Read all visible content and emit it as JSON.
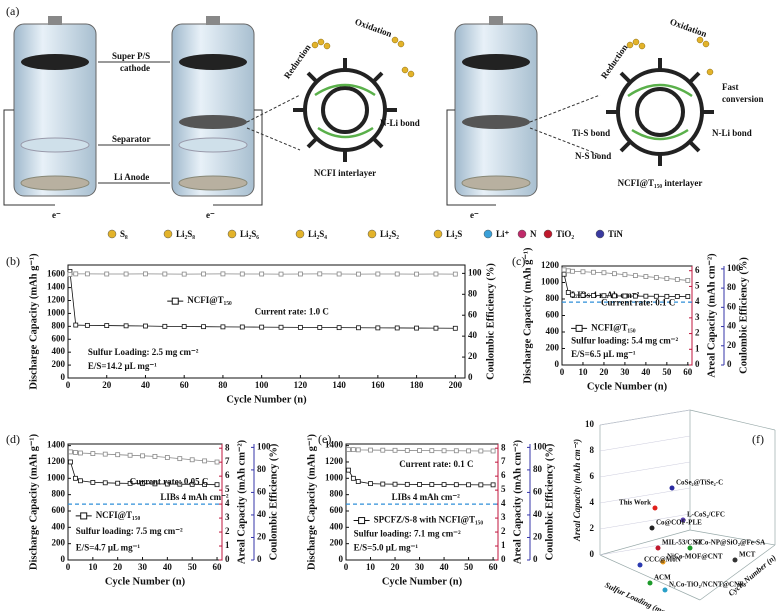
{
  "diagram": {
    "label": "(a)",
    "cathode_label": [
      "Super P/S",
      "cathode"
    ],
    "separator_label": "Separator",
    "anode_label": "Li Anode",
    "electrons": [
      "e⁻",
      "e⁻",
      "e⁻"
    ],
    "ncfi": {
      "reduction": "Reduction",
      "oxidation": "Oxidation",
      "bond": "N-Li bond",
      "title": "NCFI interlayer"
    },
    "ncfi_t": {
      "reduction": "Reduction",
      "oxidation": "Oxidation",
      "fast": [
        "Fast",
        "conversion"
      ],
      "ti_s": "Ti-S bond",
      "n_s": "N-S bond",
      "n_li": "N-Li bond",
      "title": "NCFI@T₁₅₀ interlayer"
    },
    "legend": [
      "S₈",
      "Li₂S₈",
      "Li₂S₆",
      "Li₂S₄",
      "Li₂S₂",
      "Li₂S",
      "Li⁺",
      "N",
      "TiO₂",
      "TiN"
    ]
  },
  "panel_f": {
    "label": "(f)",
    "zlabel": "Areal Capacity (mAh cm⁻²)",
    "xlabel": "Sulfur Loading (mg cm⁻²)",
    "ylabel": "Cycle Number (n)",
    "zticks": [
      "0",
      "2",
      "4",
      "6",
      "8",
      "10"
    ],
    "points": [
      {
        "name": "This Work",
        "color": "#e0201b"
      },
      {
        "name": "CoSe₂@TiSe₂-C",
        "color": "#2a2aa0"
      },
      {
        "name": "L-CoS₂/CFC",
        "color": "#5a3fb0"
      },
      {
        "name": "Co@COF-PLE",
        "color": "#222222"
      },
      {
        "name": "S/Co-NP@SiO₂@Fe-SA",
        "color": "#1c9a2a"
      },
      {
        "name": "MIL-53/CNT",
        "color": "#c0182c"
      },
      {
        "name": "NiCo-MOF@CNT",
        "color": "#e89a1c"
      },
      {
        "name": "MCT",
        "color": "#333333"
      },
      {
        "name": "CCC@MoN",
        "color": "#2a3ab0"
      },
      {
        "name": "ACM",
        "color": "#1c9a2a"
      },
      {
        "name": "N,Co-TiO₂/NCNT@CNFs",
        "color": "#2aa0c8"
      }
    ]
  },
  "chart_data": [
    {
      "type": "line",
      "label": "(b)",
      "xlabel": "Cycle Number (n)",
      "ylabel": "Discharge Capacity (mAh g⁻¹)",
      "y2label": "Coulombic Efficiency (%)",
      "x": [
        1,
        4,
        10,
        20,
        30,
        40,
        50,
        60,
        70,
        80,
        90,
        100,
        110,
        120,
        130,
        140,
        150,
        160,
        170,
        180,
        190,
        200
      ],
      "xlim": [
        0,
        205
      ],
      "xticks": [
        0,
        20,
        40,
        60,
        80,
        100,
        120,
        140,
        160,
        180,
        200
      ],
      "ylim": [
        0,
        1750
      ],
      "yticks": [
        0,
        200,
        400,
        600,
        800,
        1000,
        1200,
        1400,
        1600
      ],
      "y2lim": [
        0,
        108
      ],
      "y2ticks": [
        0,
        20,
        40,
        60,
        80,
        100
      ],
      "y2color": "#111111",
      "series": [
        {
          "name": "NCFI@T₁₅₀",
          "color": "#111111",
          "axis": "y",
          "values": [
            1650,
            820,
            815,
            812,
            808,
            805,
            800,
            798,
            795,
            792,
            790,
            788,
            786,
            784,
            782,
            780,
            778,
            776,
            775,
            773,
            772,
            770
          ]
        },
        {
          "color": "#888888",
          "axis": "y2",
          "values": [
            99,
            99.5,
            99.5,
            99.4,
            99.4,
            99.5,
            99.4,
            99.3,
            99.4,
            99.5,
            99.4,
            99.4,
            99.3,
            99.4,
            99.5,
            99.4,
            99.3,
            99.4,
            99.4,
            99.3,
            99.4,
            99.3
          ]
        }
      ],
      "annotations": [
        "Current rate: 1.0 C",
        "Sulfur Loading: 2.5 mg cm⁻²",
        "E/S=14.2 μL mg⁻¹"
      ]
    },
    {
      "type": "line",
      "label": "(c)",
      "xlabel": "Cycle Number (n)",
      "ylabel": "Discharge Capacity (mAh g⁻¹)",
      "y2label": "Areal Capacity (mAh cm⁻²)",
      "y3label": "Coulombic Efficiency (%)",
      "x": [
        1,
        3,
        5,
        10,
        15,
        20,
        25,
        30,
        35,
        40,
        45,
        50,
        55,
        60
      ],
      "xlim": [
        0,
        62
      ],
      "xticks": [
        0,
        10,
        20,
        30,
        40,
        50,
        60
      ],
      "ylim": [
        0,
        1200
      ],
      "yticks": [
        0,
        200,
        400,
        600,
        800,
        1000,
        1200
      ],
      "y2lim": [
        0,
        6.3
      ],
      "y2ticks": [
        0,
        1,
        2,
        3,
        4,
        5,
        6
      ],
      "y2color": "#c0143c",
      "y3lim": [
        0,
        103
      ],
      "y3ticks": [
        0,
        20,
        40,
        60,
        80,
        100
      ],
      "y3color": "#3434a8",
      "series": [
        {
          "name": "NCFI@T₁₅₀",
          "color": "#111111",
          "axis": "y",
          "values": [
            1100,
            880,
            850,
            845,
            842,
            840,
            838,
            836,
            835,
            834,
            833,
            832,
            831,
            830
          ]
        },
        {
          "color": "#888888",
          "axis": "y3",
          "values": [
            99,
            98,
            97.5,
            97,
            96.5,
            96,
            95,
            94,
            93,
            92,
            91,
            90,
            89,
            88
          ]
        }
      ],
      "reference": {
        "value": 4,
        "axis": "y2",
        "label": "LIBs  4 mAh cm⁻²",
        "color": "#2f8fd8"
      },
      "annotations": [
        "Current rate: 0.1 C",
        "Sulfur loading: 5.4 mg cm⁻²",
        "E/S=6.5 μL mg⁻¹"
      ]
    },
    {
      "type": "line",
      "label": "(d)",
      "xlabel": "Cycle Number (n)",
      "ylabel": "Discharge Capacity (mAh g⁻¹)",
      "y2label": "Areal Capacity (mAh cm⁻²)",
      "y3label": "Coulombic Efficiency (%)",
      "x": [
        1,
        3,
        5,
        10,
        15,
        20,
        25,
        30,
        35,
        40,
        45,
        50,
        55,
        60
      ],
      "xlim": [
        0,
        62
      ],
      "xticks": [
        0,
        10,
        20,
        30,
        40,
        50,
        60
      ],
      "ylim": [
        0,
        1420
      ],
      "yticks": [
        0,
        200,
        400,
        600,
        800,
        1000,
        1200,
        1400
      ],
      "y2lim": [
        0,
        8.3
      ],
      "y2ticks": [
        0,
        1,
        2,
        3,
        4,
        5,
        6,
        7,
        8
      ],
      "y2color": "#c0143c",
      "y3lim": [
        0,
        103
      ],
      "y3ticks": [
        0,
        20,
        40,
        60,
        80,
        100
      ],
      "y3color": "#3434a8",
      "series": [
        {
          "name": "NCFI@T₁₅₀",
          "color": "#111111",
          "axis": "y",
          "values": [
            1200,
            1000,
            970,
            950,
            945,
            940,
            938,
            935,
            932,
            930,
            928,
            926,
            924,
            922
          ]
        },
        {
          "color": "#888888",
          "axis": "y3",
          "values": [
            96,
            95.5,
            95,
            94.5,
            94,
            93.5,
            93,
            92.5,
            92,
            91,
            90,
            89,
            88,
            87
          ]
        }
      ],
      "reference": {
        "value": 4,
        "axis": "y2",
        "label": "LIBs  4 mAh cm⁻²",
        "color": "#2f8fd8"
      },
      "annotations": [
        "Current rate: 0.05 C",
        "Sulfur loading: 7.5 mg cm⁻²",
        "E/S=4.7 μL mg⁻¹"
      ]
    },
    {
      "type": "line",
      "label": "(e)",
      "xlabel": "Cycle Number (n)",
      "ylabel": "Discharge Capacity (mAh g⁻¹)",
      "y2label": "Areal Capacity (mAh cm⁻²)",
      "y3label": "Coulombic Efficiency (%)",
      "x": [
        1,
        3,
        5,
        10,
        15,
        20,
        25,
        30,
        35,
        40,
        45,
        50,
        55,
        60
      ],
      "xlim": [
        0,
        62
      ],
      "xticks": [
        0,
        10,
        20,
        30,
        40,
        50,
        60
      ],
      "ylim": [
        0,
        1420
      ],
      "yticks": [
        0,
        200,
        400,
        600,
        800,
        1000,
        1200,
        1400
      ],
      "y2lim": [
        0,
        8.3
      ],
      "y2ticks": [
        0,
        1,
        2,
        3,
        4,
        5,
        6,
        7,
        8
      ],
      "y2color": "#c0143c",
      "y3lim": [
        0,
        103
      ],
      "y3ticks": [
        0,
        20,
        40,
        60,
        80,
        100
      ],
      "y3color": "#3434a8",
      "series": [
        {
          "name": "SPCFZ/S-8 with NCFI@T₁₅₀",
          "color": "#111111",
          "axis": "y",
          "values": [
            1100,
            1000,
            960,
            935,
            930,
            928,
            926,
            925,
            924,
            923,
            922,
            921,
            920,
            920
          ]
        },
        {
          "color": "#888888",
          "axis": "y3",
          "values": [
            98,
            98,
            97.8,
            97.6,
            97.5,
            97.4,
            97.3,
            97.2,
            97.1,
            97,
            97,
            96.9,
            96.8,
            96.8
          ]
        }
      ],
      "reference": {
        "value": 4,
        "axis": "y2",
        "label": "LIBs  4 mAh cm⁻²",
        "color": "#2f8fd8"
      },
      "annotations": [
        "Current rate: 0.1 C",
        "Sulfur loading: 7.1 mg cm⁻²",
        "E/S=5.0 μL mg⁻¹"
      ]
    }
  ]
}
